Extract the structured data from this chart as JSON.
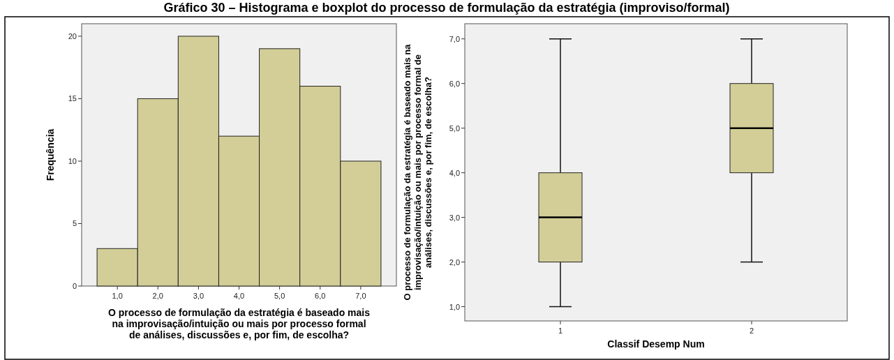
{
  "chart_data": [
    {
      "type": "histogram",
      "title": "Gráfico 30 – Histograma e boxplot do processo de formulação da estratégia (improviso/formal)",
      "bins": [
        0.5,
        1.5,
        2.5,
        3.5,
        4.5,
        5.5,
        6.5,
        7.5
      ],
      "values": [
        3,
        15,
        20,
        12,
        19,
        16,
        10
      ],
      "color": "#d3ce97",
      "xlim": [
        0.12,
        7.88
      ],
      "xticks": [
        {
          "value": 1,
          "label": "1,0"
        },
        {
          "value": 2,
          "label": "2,0"
        },
        {
          "value": 3,
          "label": "3,0"
        },
        {
          "value": 4,
          "label": "4,0"
        },
        {
          "value": 5,
          "label": "5,0"
        },
        {
          "value": 6,
          "label": "6,0"
        },
        {
          "value": 7,
          "label": "7,0"
        }
      ],
      "ylim": [
        0,
        21
      ],
      "yticks": [
        0,
        5,
        10,
        15,
        20
      ],
      "xlabel": "O processo de formulação da estratégia é baseado mais na improvisação/intuição ou mais por processo formal de análises, discussões e, por fim, de escolha?",
      "ylabel": "Frequência"
    },
    {
      "type": "box",
      "categories": [
        "1",
        "2"
      ],
      "color": "#d3ce97",
      "boxes": [
        {
          "low": 1,
          "q1": 2,
          "median": 3,
          "q3": 4,
          "high": 7
        },
        {
          "low": 2,
          "q1": 4,
          "median": 5,
          "q3": 6,
          "high": 7
        }
      ],
      "ylim": [
        0.68,
        7.34
      ],
      "yticks": [
        {
          "value": 1,
          "label": "1,0"
        },
        {
          "value": 2,
          "label": "2,0"
        },
        {
          "value": 3,
          "label": "3,0"
        },
        {
          "value": 4,
          "label": "4,0"
        },
        {
          "value": 5,
          "label": "5,0"
        },
        {
          "value": 6,
          "label": "6,0"
        },
        {
          "value": 7,
          "label": "7,0"
        }
      ],
      "xlabel": "Classif Desemp Num",
      "ylabel": "O processo de formulação da estratégia é baseado mais na improvisação/intuição ou mais por processo formal de análises, discussões e, por fim, de escolha?"
    }
  ]
}
